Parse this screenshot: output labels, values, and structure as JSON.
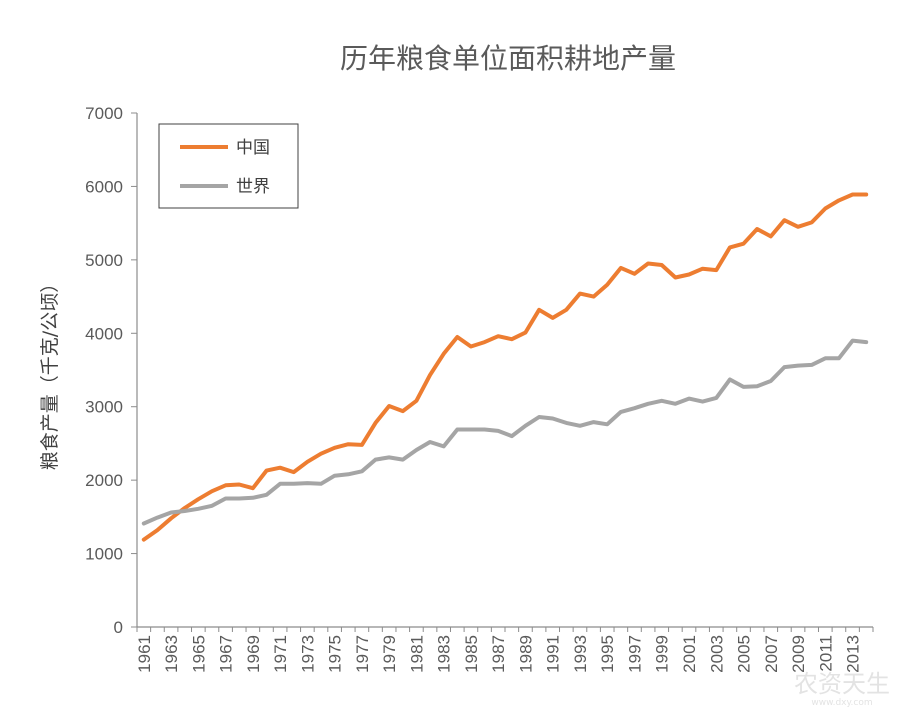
{
  "chart_data": {
    "type": "line",
    "title": "历年粮食单位面积耕地产量",
    "ylabel": "粮食产量（千克/公顷）",
    "xlabel": "",
    "ylim": [
      0,
      7000
    ],
    "yticks": [
      0,
      1000,
      2000,
      3000,
      4000,
      5000,
      6000,
      7000
    ],
    "x": [
      1961,
      1962,
      1963,
      1964,
      1965,
      1966,
      1967,
      1968,
      1969,
      1970,
      1971,
      1972,
      1973,
      1974,
      1975,
      1976,
      1977,
      1978,
      1979,
      1980,
      1981,
      1982,
      1983,
      1984,
      1985,
      1986,
      1987,
      1988,
      1989,
      1990,
      1991,
      1992,
      1993,
      1994,
      1995,
      1996,
      1997,
      1998,
      1999,
      2000,
      2001,
      2002,
      2003,
      2004,
      2005,
      2006,
      2007,
      2008,
      2009,
      2010,
      2011,
      2012,
      2013,
      2014
    ],
    "x_tick_labels": [
      "1961",
      "1963",
      "1965",
      "1967",
      "1969",
      "1971",
      "1973",
      "1975",
      "1977",
      "1979",
      "1981",
      "1983",
      "1985",
      "1987",
      "1989",
      "1991",
      "1993",
      "1995",
      "1997",
      "1999",
      "2001",
      "2003",
      "2005",
      "2007",
      "2009",
      "2011",
      "2013"
    ],
    "legend_position": "top-left",
    "grid": false,
    "series": [
      {
        "name": "中国",
        "color": "#ed7d31",
        "values": [
          1190,
          1320,
          1480,
          1620,
          1740,
          1850,
          1930,
          1940,
          1890,
          2130,
          2170,
          2110,
          2250,
          2360,
          2440,
          2490,
          2480,
          2780,
          3010,
          2940,
          3080,
          3430,
          3720,
          3950,
          3820,
          3880,
          3960,
          3920,
          4010,
          4320,
          4210,
          4320,
          4540,
          4500,
          4660,
          4890,
          4810,
          4950,
          4930,
          4760,
          4800,
          4880,
          4860,
          5170,
          5220,
          5420,
          5320,
          5540,
          5450,
          5510,
          5700,
          5810,
          5890,
          5890
        ]
      },
      {
        "name": "世界",
        "color": "#a5a5a5",
        "values": [
          1410,
          1490,
          1560,
          1580,
          1610,
          1650,
          1750,
          1750,
          1760,
          1800,
          1950,
          1950,
          1960,
          1950,
          2060,
          2080,
          2120,
          2280,
          2310,
          2280,
          2410,
          2520,
          2460,
          2690,
          2690,
          2690,
          2670,
          2600,
          2740,
          2860,
          2840,
          2780,
          2740,
          2790,
          2760,
          2930,
          2980,
          3040,
          3080,
          3040,
          3110,
          3070,
          3120,
          3370,
          3270,
          3280,
          3350,
          3540,
          3560,
          3570,
          3660,
          3660,
          3900,
          3880
        ]
      }
    ]
  },
  "watermark": {
    "text": "农资天生",
    "subtext": "www.dxy.com"
  }
}
